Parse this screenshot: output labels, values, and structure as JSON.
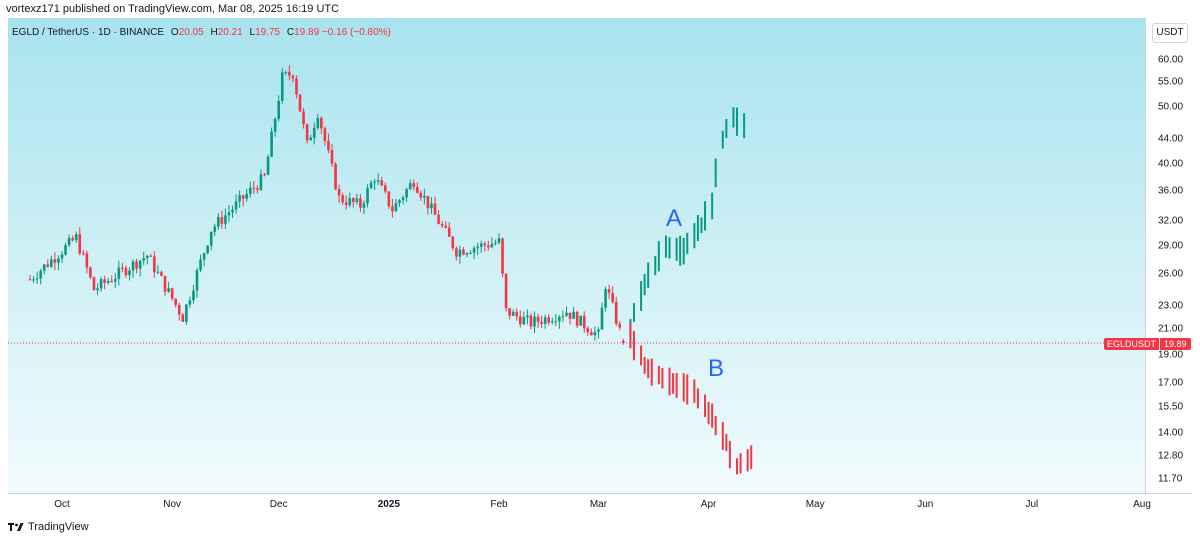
{
  "header": {
    "published_line": "vortexz171 published on TradingView.com, Mar 08, 2025 16:19 UTC"
  },
  "legend": {
    "symbol": "EGLD / TetherUS · 1D · BINANCE",
    "open_label": "O",
    "open": "20.05",
    "high_label": "H",
    "high": "20.21",
    "low_label": "L",
    "low": "19.75",
    "close_label": "C",
    "close": "19.89",
    "change": "−0.16 (−0.80%)"
  },
  "price_axis": {
    "currency": "USDT",
    "ticks": [
      "60.00",
      "55.00",
      "50.00",
      "44.00",
      "40.00",
      "36.00",
      "32.00",
      "29.00",
      "26.00",
      "23.00",
      "21.00",
      "19.00",
      "17.00",
      "15.50",
      "14.00",
      "12.80",
      "11.70"
    ]
  },
  "price_tag": {
    "symbol": "EGLDUSDT",
    "value": "19.89"
  },
  "time_axis": {
    "ticks": [
      "Oct",
      "Nov",
      "Dec",
      "2025",
      "Feb",
      "Mar",
      "Apr",
      "May",
      "Jun",
      "Jul",
      "Aug"
    ]
  },
  "annotations": {
    "a": "A",
    "b": "B"
  },
  "footer": {
    "brand": "TradingView"
  },
  "colors": {
    "up": "#089981",
    "down": "#f23645",
    "annotation": "#2962ff",
    "last_price_line": "#f23645"
  },
  "chart_data": {
    "type": "candlestick",
    "symbol": "EGLD / TetherUS",
    "interval": "1D",
    "exchange": "BINANCE",
    "y_scale": "log",
    "ylim": [
      11.2,
      66
    ],
    "grid": false,
    "last_price": 19.89,
    "key_closes": [
      {
        "date": "2024-09-22",
        "close": 25.5
      },
      {
        "date": "2024-10-05",
        "close": 30.0
      },
      {
        "date": "2024-10-10",
        "close": 24.5
      },
      {
        "date": "2024-10-25",
        "close": 28.0
      },
      {
        "date": "2024-11-04",
        "close": 22.0
      },
      {
        "date": "2024-11-12",
        "close": 31.0
      },
      {
        "date": "2024-11-27",
        "close": 38.0
      },
      {
        "date": "2024-12-02",
        "close": 56.0
      },
      {
        "date": "2024-12-05",
        "close": 57.0
      },
      {
        "date": "2024-12-09",
        "close": 43.0
      },
      {
        "date": "2024-12-12",
        "close": 49.0
      },
      {
        "date": "2024-12-18",
        "close": 35.0
      },
      {
        "date": "2024-12-24",
        "close": 34.0
      },
      {
        "date": "2024-12-28",
        "close": 38.0
      },
      {
        "date": "2025-01-02",
        "close": 33.5
      },
      {
        "date": "2025-01-08",
        "close": 37.5
      },
      {
        "date": "2025-01-20",
        "close": 28.5
      },
      {
        "date": "2025-02-01",
        "close": 29.5
      },
      {
        "date": "2025-02-03",
        "close": 22.5
      },
      {
        "date": "2025-02-10",
        "close": 21.5
      },
      {
        "date": "2025-02-20",
        "close": 22.5
      },
      {
        "date": "2025-03-01",
        "close": 20.5
      },
      {
        "date": "2025-03-03",
        "close": 25.0
      },
      {
        "date": "2025-03-08",
        "close": 19.89
      }
    ],
    "projection_a": {
      "label": "A",
      "points": [
        {
          "date": "2025-03-10",
          "value": 21.0
        },
        {
          "date": "2025-03-14",
          "value": 25.0
        },
        {
          "date": "2025-03-20",
          "value": 29.0
        },
        {
          "date": "2025-03-25",
          "value": 28.5
        },
        {
          "date": "2025-03-30",
          "value": 31.5
        },
        {
          "date": "2025-04-02",
          "value": 34.0
        },
        {
          "date": "2025-04-05",
          "value": 44.0
        },
        {
          "date": "2025-04-08",
          "value": 48.0
        },
        {
          "date": "2025-04-12",
          "value": 46.0
        }
      ]
    },
    "projection_b": {
      "label": "B",
      "points": [
        {
          "date": "2025-03-10",
          "value": 20.5
        },
        {
          "date": "2025-03-15",
          "value": 18.0
        },
        {
          "date": "2025-03-22",
          "value": 17.0
        },
        {
          "date": "2025-03-28",
          "value": 16.5
        },
        {
          "date": "2025-04-02",
          "value": 15.0
        },
        {
          "date": "2025-04-06",
          "value": 13.5
        },
        {
          "date": "2025-04-09",
          "value": 12.3
        },
        {
          "date": "2025-04-14",
          "value": 12.8
        }
      ]
    }
  }
}
